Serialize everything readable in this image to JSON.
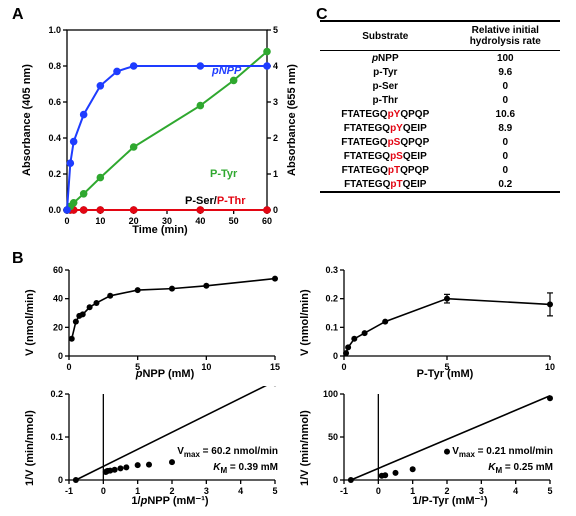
{
  "panels": {
    "A": "A",
    "B": "B",
    "C": "C"
  },
  "colors": {
    "pNPP": "#1e3cff",
    "pTyr": "#2fa82f",
    "pSer": "#000000",
    "pThr": "#e30613",
    "line": "#000000",
    "bg": "#ffffff",
    "marker": "#000000"
  },
  "panelA": {
    "xlabel": "Time (min)",
    "ylabel_left": "Absorbance (405 nm)",
    "ylabel_right": "Absorbance (655 nm)",
    "xlim": [
      0,
      60
    ],
    "xtick_step": 10,
    "ylim_left": [
      0,
      1.0
    ],
    "ytick_step_left": 0.2,
    "ylim_right": [
      0,
      5
    ],
    "ytick_step_right": 1,
    "series": {
      "pNPP": {
        "label": "pNPP",
        "axis": "right",
        "x": [
          0,
          1,
          2,
          5,
          10,
          15,
          20,
          40,
          60
        ],
        "y": [
          0,
          1.3,
          1.9,
          2.65,
          3.45,
          3.85,
          4.0,
          4.0,
          4.0
        ]
      },
      "pTyr": {
        "label": "P-Tyr",
        "axis": "left",
        "x": [
          0,
          1,
          2,
          5,
          10,
          20,
          40,
          50,
          60
        ],
        "y": [
          0,
          0.02,
          0.04,
          0.09,
          0.18,
          0.35,
          0.58,
          0.72,
          0.88
        ]
      },
      "pSer": {
        "label": "P-Ser",
        "axis": "left",
        "x": [
          0,
          1,
          2,
          5,
          10,
          20,
          40,
          60
        ],
        "y": [
          0,
          0,
          0,
          0,
          0,
          0,
          0,
          0
        ]
      },
      "pThr": {
        "label": "P-Thr",
        "axis": "left",
        "x": [
          0,
          1,
          2,
          5,
          10,
          20,
          40,
          60
        ],
        "y": [
          0,
          0,
          0,
          0,
          0,
          0,
          0,
          0
        ]
      }
    }
  },
  "panelB": {
    "charts": [
      {
        "id": "sat_pnpp",
        "xlabel": "pNPP (mM)",
        "ylabel": "V (nmol/min)",
        "xlabel_italic_first": true,
        "xlim": [
          0,
          15
        ],
        "xtick_step": 5,
        "ylim": [
          0,
          60
        ],
        "ytick_step": 20,
        "x": [
          0.2,
          0.5,
          0.75,
          1,
          1.5,
          2,
          3,
          5,
          7.5,
          10,
          15
        ],
        "y": [
          12,
          24,
          28,
          29,
          34,
          37,
          42,
          46,
          47,
          49,
          54
        ]
      },
      {
        "id": "sat_ptyr",
        "xlabel": "P-Tyr (mM)",
        "ylabel": "V (nmol/min)",
        "xlim": [
          0,
          10
        ],
        "xtick_step": 5,
        "ylim": [
          0,
          0.3
        ],
        "ytick_step": 0.1,
        "x": [
          0.1,
          0.2,
          0.5,
          1,
          2,
          5,
          10
        ],
        "y": [
          0.01,
          0.03,
          0.06,
          0.08,
          0.12,
          0.2,
          0.18
        ],
        "err": [
          0,
          0,
          0,
          0,
          0,
          0.015,
          0.04
        ]
      },
      {
        "id": "lb_pnpp",
        "xlabel": "1/pNPP (mM⁻¹)",
        "ylabel": "1/V (min/nmol)",
        "xlabel_italic_first": true,
        "xlim": [
          -1,
          5
        ],
        "xtick_step": 1,
        "ylim": [
          0,
          0.2
        ],
        "ytick_step": 0.1,
        "x": [
          -0.8,
          0.07,
          0.1,
          0.13,
          0.2,
          0.33,
          0.5,
          0.67,
          1,
          1.33,
          2,
          5
        ],
        "y": [
          0,
          0.0185,
          0.0204,
          0.0213,
          0.0217,
          0.0238,
          0.027,
          0.0294,
          0.0345,
          0.0357,
          0.0417,
          0.225
        ],
        "fit_x": [
          -0.8,
          5
        ],
        "fit_y": [
          0,
          0.23
        ],
        "kinetics": {
          "vmax": "V",
          "vmax_sub": "max",
          "vmax_val": " = 60.2 nmol/min",
          "km": "K",
          "km_sub": "M",
          "km_val": " = 0.39 mM"
        }
      },
      {
        "id": "lb_ptyr",
        "xlabel": "1/P-Tyr (mM⁻¹)",
        "ylabel": "1/V (min/nmol)",
        "xlim": [
          -1,
          5
        ],
        "xtick_step": 1,
        "ylim": [
          0,
          100
        ],
        "ytick_step": 50,
        "x": [
          -0.8,
          0.1,
          0.2,
          0.5,
          1,
          2,
          5
        ],
        "y": [
          0,
          5,
          5.5,
          8.3,
          12.5,
          33,
          95
        ],
        "fit_x": [
          -0.8,
          5
        ],
        "fit_y": [
          0,
          98
        ],
        "kinetics": {
          "vmax": "V",
          "vmax_sub": "max",
          "vmax_val": " = 0.21 nmol/min",
          "km": "K",
          "km_sub": "M",
          "km_val": " = 0.25 mM"
        }
      }
    ]
  },
  "panelC": {
    "headers": [
      "Substrate",
      "Relative initial\nhydrolysis rate"
    ],
    "rows": [
      {
        "pre": "",
        "phos": "p",
        "post": "NPP",
        "italic_phos": true,
        "rate": "100"
      },
      {
        "pre": "p-Tyr",
        "phos": "",
        "post": "",
        "rate": "9.6"
      },
      {
        "pre": "p-Ser",
        "phos": "",
        "post": "",
        "rate": "0"
      },
      {
        "pre": "p-Thr",
        "phos": "",
        "post": "",
        "rate": "0"
      },
      {
        "pre": "FTATEGQ",
        "phos": "pY",
        "post": "QPQP",
        "rate": "10.6"
      },
      {
        "pre": "FTATEGQ",
        "phos": "pY",
        "post": "QEIP",
        "rate": "8.9"
      },
      {
        "pre": "FTATEGQ",
        "phos": "pS",
        "post": "QPQP",
        "rate": "0"
      },
      {
        "pre": "FTATEGQ",
        "phos": "pS",
        "post": "QEIP",
        "rate": "0"
      },
      {
        "pre": "FTATEGQ",
        "phos": "pT",
        "post": "QPQP",
        "rate": "0"
      },
      {
        "pre": "FTATEGQ",
        "phos": "pT",
        "post": "QEIP",
        "rate": "0.2"
      }
    ]
  }
}
